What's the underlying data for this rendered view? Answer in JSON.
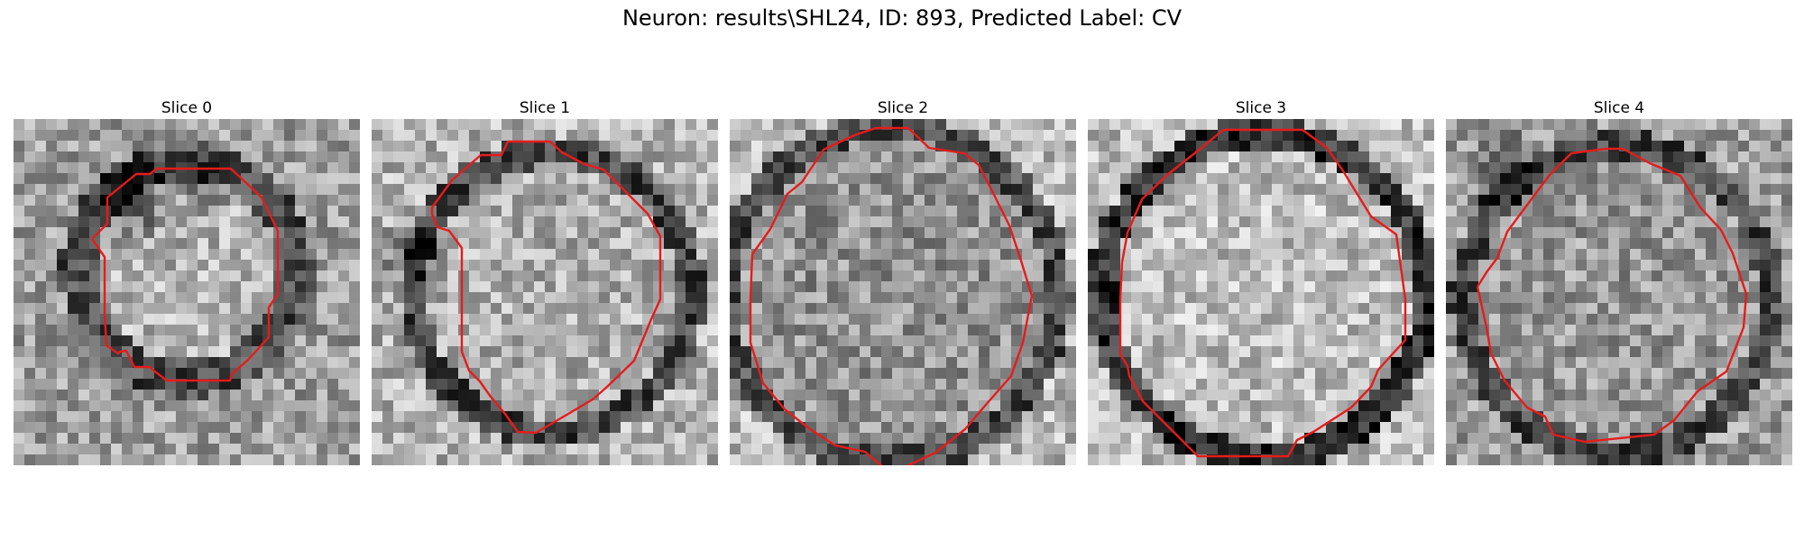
{
  "figure": {
    "title": "Neuron: results\\SHL24, ID: 893, Predicted Label: CV",
    "contour_color": "#e51c1c"
  },
  "panels": [
    {
      "title": "Slice 0"
    },
    {
      "title": "Slice 1"
    },
    {
      "title": "Slice 2"
    },
    {
      "title": "Slice 3"
    },
    {
      "title": "Slice 4"
    }
  ]
}
